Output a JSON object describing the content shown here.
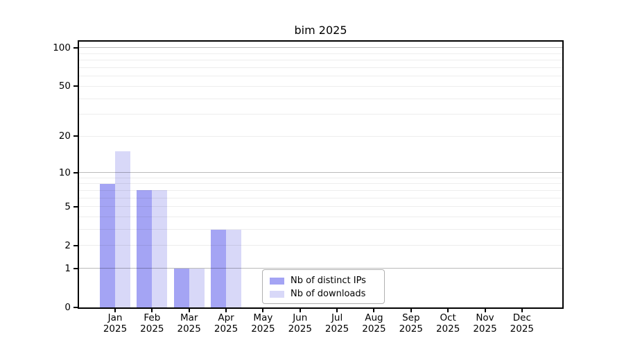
{
  "chart_data": {
    "type": "bar",
    "title": "bim 2025",
    "year": "2025",
    "categories": [
      "Jan",
      "Feb",
      "Mar",
      "Apr",
      "May",
      "Jun",
      "Jul",
      "Aug",
      "Sep",
      "Oct",
      "Nov",
      "Dec"
    ],
    "series": [
      {
        "name": "Nb of distinct IPs",
        "color": "#a4a4f4",
        "values": [
          8,
          7,
          1,
          3,
          0,
          0,
          0,
          0,
          0,
          0,
          0,
          0
        ]
      },
      {
        "name": "Nb of downloads",
        "color": "#d8d8f8",
        "values": [
          15,
          7,
          1,
          3,
          0,
          0,
          0,
          0,
          0,
          0,
          0,
          0
        ]
      }
    ],
    "yticks": [
      0,
      1,
      2,
      5,
      10,
      20,
      50,
      100
    ],
    "xlabel": "",
    "ylabel": "",
    "yscale": "log10(1+value)",
    "ylim": [
      0,
      112
    ],
    "grid_minor_values": [
      2,
      3,
      4,
      5,
      6,
      7,
      8,
      9,
      20,
      30,
      40,
      50,
      60,
      70,
      80,
      90
    ],
    "grid_major_values": [
      1,
      10,
      100
    ],
    "legend": {
      "position": "lower-center-inside"
    },
    "colors": {
      "axis": "#000000",
      "grid_major": "#bdbdbd",
      "grid_minor": "#ededed",
      "background": "#ffffff"
    }
  }
}
